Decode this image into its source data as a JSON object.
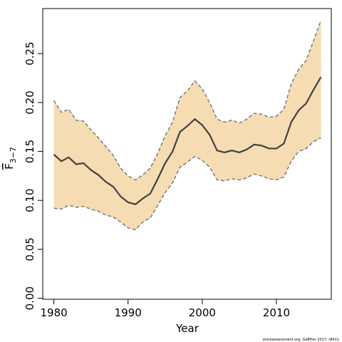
{
  "chart_data": {
    "type": "line",
    "xlabel": "Year",
    "ylabel": "F",
    "ylabel_subscript": "3−7",
    "footer": "stockassessment.org, GoBHer 2017, r8411",
    "x": [
      1980,
      1981,
      1982,
      1983,
      1984,
      1985,
      1986,
      1987,
      1988,
      1989,
      1990,
      1991,
      1992,
      1993,
      1994,
      1995,
      1996,
      1997,
      1998,
      1999,
      2000,
      2001,
      2002,
      2003,
      2004,
      2005,
      2006,
      2007,
      2008,
      2009,
      2010,
      2011,
      2012,
      2013,
      2014,
      2015,
      2016
    ],
    "values": [
      0.147,
      0.14,
      0.144,
      0.137,
      0.138,
      0.131,
      0.126,
      0.119,
      0.114,
      0.104,
      0.098,
      0.096,
      0.102,
      0.107,
      0.122,
      0.138,
      0.15,
      0.17,
      0.176,
      0.183,
      0.177,
      0.167,
      0.151,
      0.149,
      0.151,
      0.149,
      0.152,
      0.157,
      0.156,
      0.153,
      0.153,
      0.158,
      0.18,
      0.192,
      0.199,
      0.213,
      0.226
    ],
    "upper": [
      0.202,
      0.19,
      0.193,
      0.182,
      0.181,
      0.172,
      0.164,
      0.155,
      0.146,
      0.133,
      0.125,
      0.121,
      0.126,
      0.133,
      0.148,
      0.166,
      0.18,
      0.205,
      0.212,
      0.222,
      0.214,
      0.2,
      0.183,
      0.18,
      0.182,
      0.179,
      0.183,
      0.189,
      0.188,
      0.185,
      0.186,
      0.193,
      0.219,
      0.234,
      0.243,
      0.263,
      0.284
    ],
    "lower": [
      0.092,
      0.091,
      0.095,
      0.093,
      0.094,
      0.091,
      0.089,
      0.085,
      0.083,
      0.078,
      0.072,
      0.07,
      0.078,
      0.082,
      0.095,
      0.108,
      0.118,
      0.134,
      0.139,
      0.145,
      0.141,
      0.134,
      0.121,
      0.12,
      0.122,
      0.121,
      0.123,
      0.127,
      0.125,
      0.122,
      0.121,
      0.124,
      0.14,
      0.15,
      0.153,
      0.16,
      0.164
    ],
    "line_color": "#404040",
    "bound_color": "#7a7a7a",
    "band_color": "#f6dcb2",
    "xlim": [
      1978.5,
      2017.4
    ],
    "ylim": [
      -0.001,
      0.296
    ],
    "xticks": [
      1980,
      1990,
      2000,
      2010
    ],
    "yticks": [
      {
        "value": 0,
        "label": "0.00"
      },
      0.05,
      {
        "value": 0.1,
        "label": "0.10"
      },
      0.15,
      {
        "value": 0.2,
        "label": "0.20"
      },
      0.25
    ]
  }
}
